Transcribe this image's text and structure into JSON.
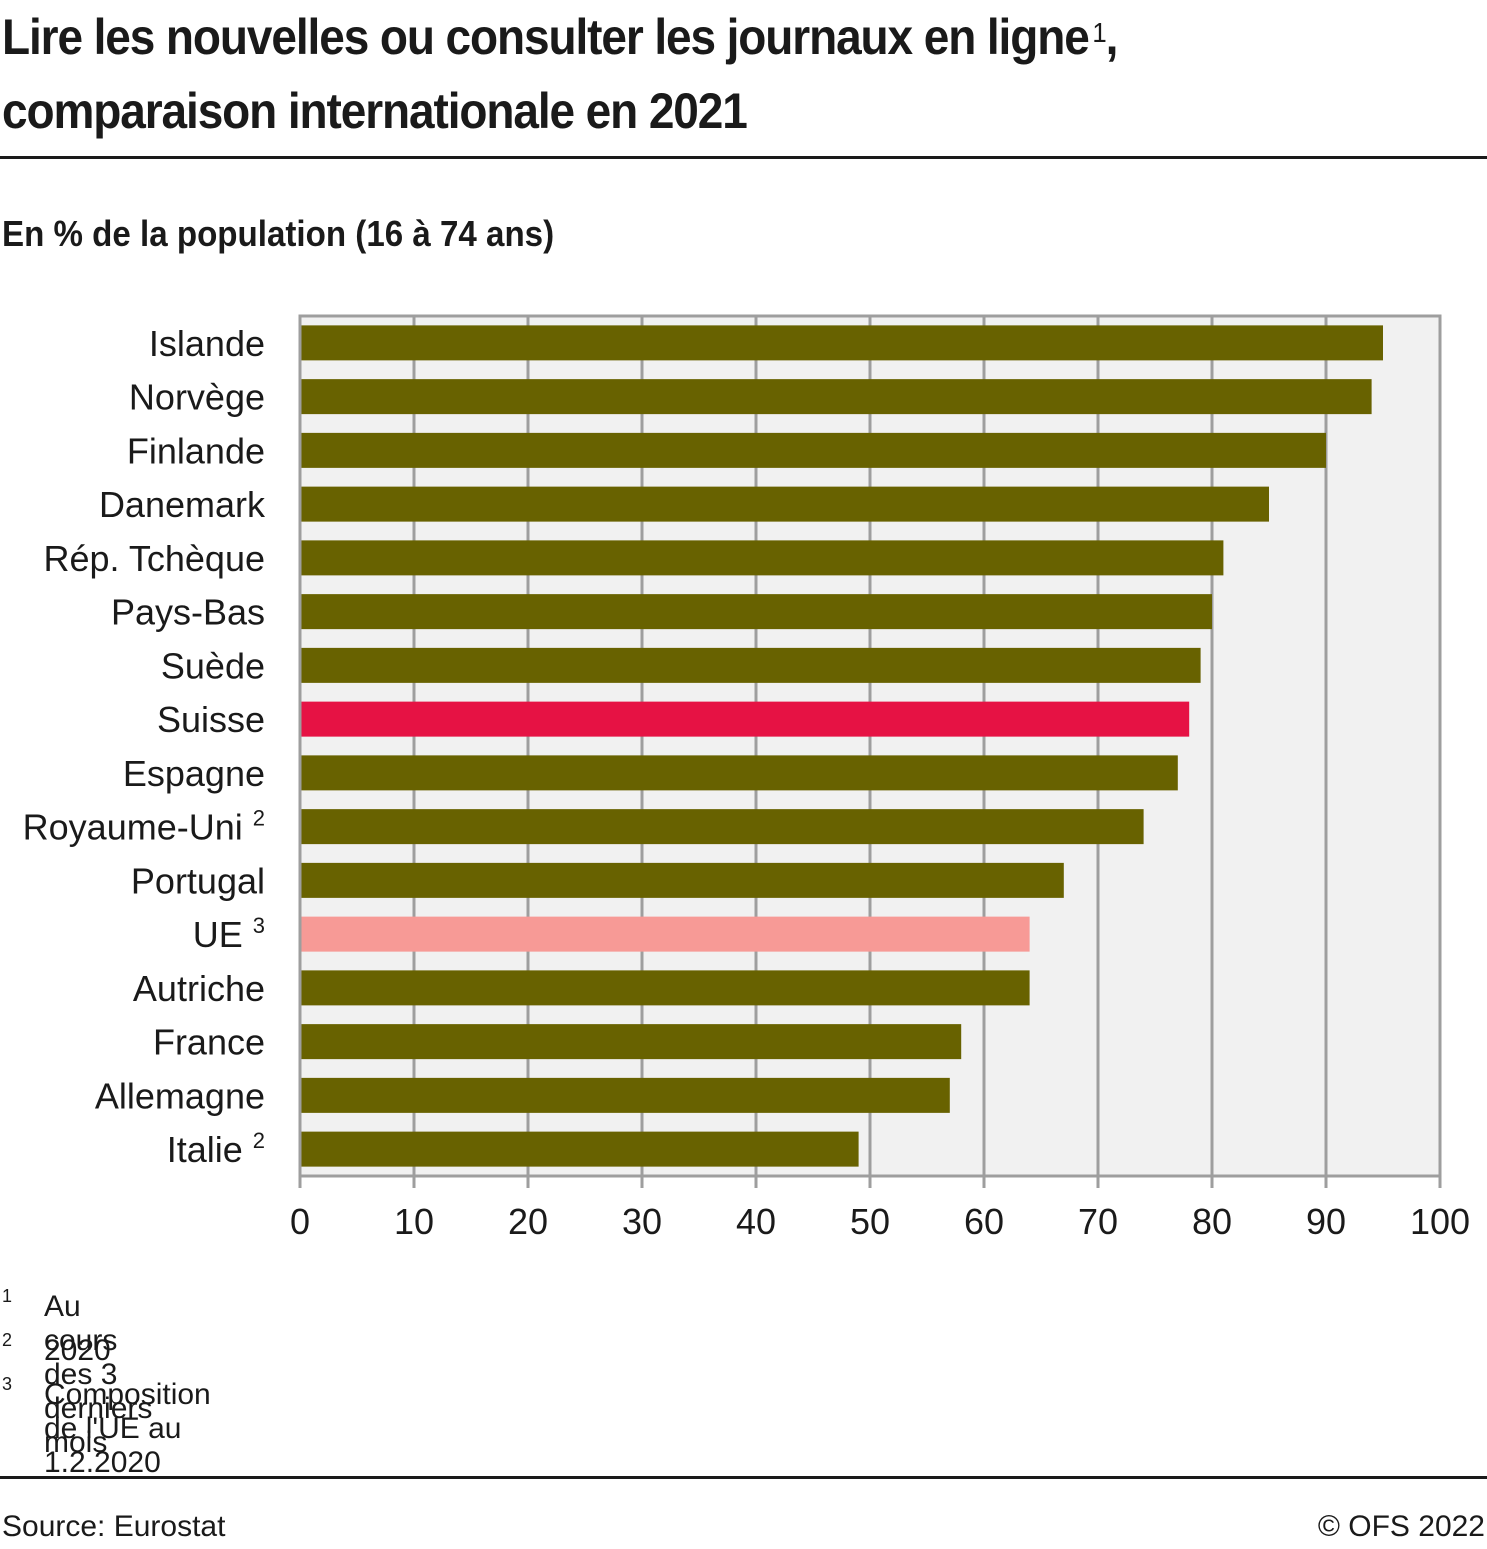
{
  "header": {
    "title_line1": "Lire les nouvelles ou consulter les journaux en ligne",
    "title_sup": "1",
    "title_comma": ",",
    "title_line2": "comparaison internationale en 2021",
    "subtitle": "En % de la population (16 à 74 ans)"
  },
  "colors": {
    "default_bar": "#686200",
    "highlight_bar": "#e61244",
    "reference_bar": "#f79a96",
    "plot_bg": "#f1f1f1",
    "grid": "#9e9e9e"
  },
  "chart_data": {
    "type": "bar",
    "orientation": "horizontal",
    "title": "Lire les nouvelles ou consulter les journaux en ligne, comparaison internationale en 2021",
    "subtitle": "En % de la population (16 à 74 ans)",
    "xlabel": "",
    "ylabel": "",
    "xlim": [
      0,
      100
    ],
    "xticks": [
      0,
      10,
      20,
      30,
      40,
      50,
      60,
      70,
      80,
      90,
      100
    ],
    "grid": true,
    "categories": [
      "Islande",
      "Norvège",
      "Finlande",
      "Danemark",
      "Rép. Tchèque",
      "Pays-Bas",
      "Suède",
      "Suisse",
      "Espagne",
      "Royaume-Uni",
      "Portugal",
      "UE",
      "Autriche",
      "France",
      "Allemagne",
      "Italie"
    ],
    "category_notes": [
      "",
      "",
      "",
      "",
      "",
      "",
      "",
      "",
      "",
      "2",
      "",
      "3",
      "",
      "",
      "",
      "2"
    ],
    "values": [
      95,
      94,
      90,
      85,
      81,
      80,
      79,
      78,
      77,
      74,
      67,
      64,
      64,
      58,
      57,
      49
    ],
    "bar_roles": [
      "default",
      "default",
      "default",
      "default",
      "default",
      "default",
      "default",
      "highlight",
      "default",
      "default",
      "default",
      "reference",
      "default",
      "default",
      "default",
      "default"
    ]
  },
  "footnotes": [
    {
      "num": "1",
      "text": "Au cours des 3 derniers mois"
    },
    {
      "num": "2",
      "text": "2020"
    },
    {
      "num": "3",
      "text": "Composition de l'UE au 1.2.2020"
    }
  ],
  "footer": {
    "source": "Source: Eurostat",
    "copyright": "© OFS 2022"
  }
}
